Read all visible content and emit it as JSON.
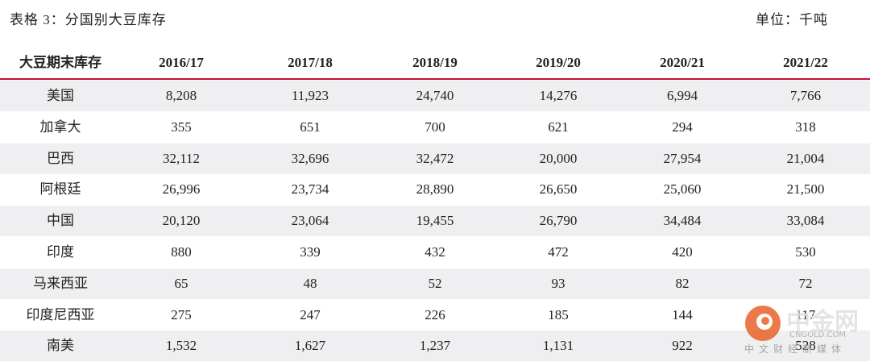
{
  "header": {
    "title": "表格 3：分国别大豆库存",
    "unit": "单位：千吨"
  },
  "table": {
    "columns": [
      "大豆期末库存",
      "2016/17",
      "2017/18",
      "2018/19",
      "2019/20",
      "2020/21",
      "2021/22"
    ],
    "rows": [
      [
        "美国",
        "8,208",
        "11,923",
        "24,740",
        "14,276",
        "6,994",
        "7,766"
      ],
      [
        "加拿大",
        "355",
        "651",
        "700",
        "621",
        "294",
        "318"
      ],
      [
        "巴西",
        "32,112",
        "32,696",
        "32,472",
        "20,000",
        "27,954",
        "21,004"
      ],
      [
        "阿根廷",
        "26,996",
        "23,734",
        "28,890",
        "26,650",
        "25,060",
        "21,500"
      ],
      [
        "中国",
        "20,120",
        "23,064",
        "19,455",
        "26,790",
        "34,484",
        "33,084"
      ],
      [
        "印度",
        "880",
        "339",
        "432",
        "472",
        "420",
        "530"
      ],
      [
        "马来西亚",
        "65",
        "48",
        "52",
        "93",
        "82",
        "72"
      ],
      [
        "印度尼西亚",
        "275",
        "247",
        "226",
        "185",
        "144",
        "117"
      ],
      [
        "南美",
        "1,532",
        "1,627",
        "1,237",
        "1,131",
        "922",
        "528"
      ]
    ]
  },
  "watermark": {
    "name": "中金网",
    "site": "CNGOLD.COM",
    "slogan": "中文财经新媒体"
  }
}
